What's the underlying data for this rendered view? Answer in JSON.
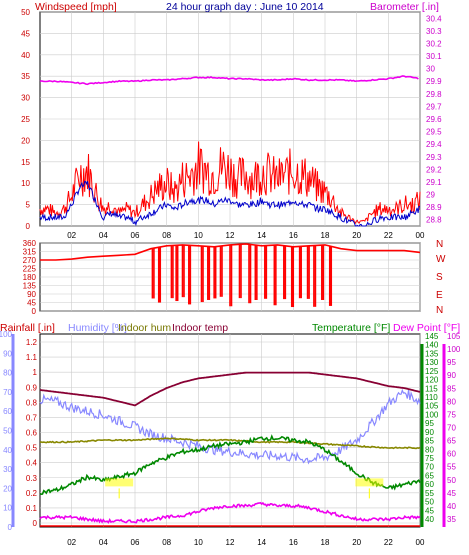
{
  "header": {
    "left_label": "Windspeed [mph]",
    "center_label": "24 hour graph day : June 10 2014",
    "right_label": "Barometer [.in]"
  },
  "colors": {
    "windspeed": "#ff0000",
    "windavg": "#0000cc",
    "barometer": "#ee00ee",
    "direction": "#ff0000",
    "rainfall_axis": "#ff0000",
    "humidity": "#8888ff",
    "indoor_hum": "#888800",
    "indoor_temp": "#880033",
    "temperature": "#008800",
    "dew_point": "#ee00ee",
    "label_yellow": "#ffff00",
    "grid": "#cccccc"
  },
  "chart_data": [
    {
      "type": "line",
      "name": "wind-barometer",
      "title": "24 hour graph day : June 10 2014",
      "ylabel_left": "Windspeed [mph]",
      "ylabel_right": "Barometer [.in]",
      "x_ticks": [
        "02",
        "04",
        "06",
        "08",
        "10",
        "12",
        "14",
        "16",
        "18",
        "20",
        "22",
        "00"
      ],
      "left_ticks": [
        "0",
        "5",
        "10",
        "15",
        "20",
        "25",
        "30",
        "35",
        "40",
        "45",
        "50"
      ],
      "right_ticks": [
        "28.8",
        "28.9",
        "29",
        "29.1",
        "29.2",
        "29.3",
        "29.4",
        "29.5",
        "29.6",
        "29.7",
        "29.8",
        "29.9",
        "30",
        "30.1",
        "30.2",
        "30.3",
        "30.4"
      ],
      "ylim_left": [
        0,
        50
      ],
      "ylim_right": [
        28.75,
        30.45
      ],
      "series": [
        {
          "key": "gust",
          "x": [
            0.5,
            1,
            1.5,
            2,
            2.5,
            3,
            3.5,
            4,
            4.5,
            5,
            5.5,
            6,
            6.5,
            7,
            7.5,
            8,
            8.5,
            9,
            9.5,
            10,
            10.5,
            11,
            11.5,
            12,
            12.5,
            13,
            13.5,
            14,
            14.5,
            15,
            15.5,
            16,
            16.5,
            17,
            17.5,
            18,
            18.5,
            19,
            19.5,
            20,
            20.5,
            21,
            21.5,
            22,
            22.5,
            23,
            23.5,
            24
          ],
          "values": [
            4,
            3,
            4,
            7,
            12,
            13,
            8,
            4,
            5,
            3,
            4,
            3,
            5,
            7,
            9,
            10,
            8,
            11,
            12,
            14,
            13,
            12,
            14,
            13,
            11,
            12,
            11,
            13,
            12,
            11,
            12,
            13,
            12,
            11,
            9,
            8,
            6,
            3,
            2,
            1,
            1,
            3,
            4,
            4,
            4,
            5,
            5,
            6
          ]
        },
        {
          "key": "average",
          "x": [
            0.5,
            1,
            1.5,
            2,
            2.5,
            3,
            3.5,
            4,
            4.5,
            5,
            5.5,
            6,
            6.5,
            7,
            7.5,
            8,
            8.5,
            9,
            9.5,
            10,
            10.5,
            11,
            11.5,
            12,
            12.5,
            13,
            13.5,
            14,
            14.5,
            15,
            15.5,
            16,
            16.5,
            17,
            17.5,
            18,
            18.5,
            19,
            19.5,
            20,
            20.5,
            21,
            21.5,
            22,
            22.5,
            23,
            23.5,
            24
          ],
          "values": [
            2,
            2,
            2,
            5,
            9,
            10,
            6,
            2,
            3,
            2,
            2,
            1,
            2,
            3,
            4,
            5,
            4,
            5,
            6,
            6,
            6,
            5,
            6,
            6,
            5,
            5,
            5,
            6,
            5,
            5,
            5,
            6,
            5,
            5,
            4,
            4,
            3,
            2,
            1,
            0,
            0,
            1,
            2,
            2,
            2,
            2,
            3,
            4
          ]
        },
        {
          "key": "barometer",
          "x": [
            0,
            1,
            2,
            3,
            4,
            5,
            6,
            7,
            8,
            9,
            10,
            11,
            12,
            13,
            14,
            15,
            16,
            17,
            18,
            19,
            20,
            21,
            22,
            23,
            24
          ],
          "values": [
            29.9,
            29.9,
            29.89,
            29.88,
            29.89,
            29.9,
            29.9,
            29.91,
            29.91,
            29.92,
            29.93,
            29.93,
            29.92,
            29.92,
            29.91,
            29.91,
            29.92,
            29.91,
            29.91,
            29.91,
            29.9,
            29.91,
            29.92,
            29.94,
            29.92
          ]
        }
      ]
    },
    {
      "type": "line",
      "name": "wind-direction",
      "ylabel_right": [
        "N",
        "W",
        "S",
        "E",
        "N"
      ],
      "left_ticks": [
        "0",
        "45",
        "90",
        "135",
        "180",
        "225",
        "270",
        "315",
        "360"
      ],
      "ylim": [
        0,
        360
      ],
      "series": [
        {
          "key": "direction",
          "x": [
            0,
            1,
            2,
            3,
            4,
            5,
            6,
            7,
            8,
            9,
            10,
            11,
            12,
            13,
            14,
            15,
            16,
            17,
            18,
            19,
            20,
            21,
            22,
            23,
            24
          ],
          "values": [
            270,
            270,
            275,
            285,
            290,
            295,
            300,
            330,
            345,
            350,
            345,
            340,
            350,
            355,
            345,
            350,
            340,
            345,
            350,
            330,
            320,
            320,
            320,
            320,
            310
          ]
        }
      ],
      "dips_x": [
        7.1,
        7.5,
        8.3,
        8.6,
        9.0,
        9.4,
        10.2,
        10.6,
        11.0,
        11.4,
        12.0,
        12.6,
        13.2,
        13.6,
        14.2,
        14.8,
        15.4,
        15.9,
        16.4,
        16.9,
        17.3,
        17.8,
        18.3
      ]
    },
    {
      "type": "line",
      "name": "rain-humidity-temperature",
      "legend": [
        "Rainfall [.in]",
        "Humidity [%]",
        "Indoor hum",
        "Indoor temp",
        "Temperature [°F]",
        "Dew Point [°F]"
      ],
      "rain_ticks": [
        "0",
        "0.1",
        "0.2",
        "0.3",
        "0.4",
        "0.5",
        "0.6",
        "0.7",
        "0.8",
        "0.9",
        "1",
        "1.1",
        "1.2"
      ],
      "hum_ticks": [
        "0",
        "10",
        "20",
        "30",
        "40",
        "50",
        "60",
        "70",
        "80",
        "90",
        "100"
      ],
      "temp_ticks": [
        "40",
        "45",
        "50",
        "55",
        "60",
        "65",
        "70",
        "75",
        "80",
        "85",
        "90",
        "95",
        "100",
        "105",
        "110",
        "115",
        "120",
        "125",
        "130",
        "135",
        "140",
        "145"
      ],
      "dew_ticks": [
        "35",
        "40",
        "45",
        "50",
        "55",
        "60",
        "65",
        "70",
        "75",
        "80",
        "85",
        "90",
        "95",
        "100",
        "105"
      ],
      "ylim_hum": [
        0,
        100
      ],
      "series": [
        {
          "key": "humidity",
          "x": [
            0,
            1,
            2,
            3,
            4,
            5,
            6,
            7,
            8,
            9,
            10,
            11,
            12,
            13,
            14,
            15,
            16,
            17,
            18,
            19,
            20,
            21,
            22,
            23,
            24
          ],
          "values": [
            66,
            65,
            62,
            60,
            58,
            55,
            52,
            48,
            46,
            44,
            42,
            40,
            39,
            38,
            37,
            37,
            36,
            35,
            36,
            40,
            45,
            54,
            64,
            70,
            65
          ]
        },
        {
          "key": "indoor_hum",
          "x": [
            0,
            2,
            4,
            6,
            8,
            10,
            12,
            14,
            16,
            18,
            20,
            22,
            24
          ],
          "values": [
            44,
            44,
            45,
            45,
            46,
            45,
            45,
            44,
            44,
            43,
            42,
            41,
            41
          ]
        },
        {
          "key": "indoor_temp",
          "x": [
            0,
            1,
            2,
            3,
            4,
            5,
            6,
            7,
            8,
            9,
            10,
            11,
            12,
            13,
            14,
            15,
            16,
            17,
            18,
            19,
            20,
            21,
            22,
            23,
            24
          ],
          "values": [
            71,
            70,
            69,
            68,
            67,
            65,
            63,
            68,
            72,
            75,
            77,
            78,
            79,
            80,
            80,
            80,
            80,
            80,
            79,
            78,
            77,
            75,
            73,
            72,
            70
          ]
        },
        {
          "key": "temperature",
          "x": [
            0,
            1,
            2,
            3,
            4,
            5,
            6,
            7,
            8,
            9,
            10,
            11,
            12,
            13,
            14,
            15,
            16,
            17,
            18,
            19,
            20,
            21,
            22,
            23,
            24
          ],
          "values": [
            18,
            19,
            22,
            26,
            24,
            26,
            28,
            33,
            36,
            39,
            40,
            42,
            43,
            44,
            46,
            46,
            45,
            44,
            40,
            34,
            28,
            23,
            20,
            22,
            24
          ]
        },
        {
          "key": "dew_point",
          "x": [
            0,
            1,
            2,
            3,
            4,
            5,
            6,
            7,
            8,
            9,
            10,
            11,
            12,
            13,
            14,
            15,
            16,
            17,
            18,
            19,
            20,
            21,
            22,
            23,
            24
          ],
          "values": [
            5,
            5,
            5,
            4,
            3,
            3,
            3,
            4,
            5,
            6,
            8,
            10,
            11,
            11,
            12,
            11,
            11,
            10,
            8,
            6,
            4,
            4,
            4,
            5,
            5
          ]
        },
        {
          "key": "rainfall",
          "x": [
            0,
            24
          ],
          "values": [
            0,
            0
          ]
        }
      ],
      "annotations": [
        {
          "x": 5.0,
          "hum": 20
        },
        {
          "x": 20.8,
          "hum": 20
        }
      ]
    }
  ]
}
